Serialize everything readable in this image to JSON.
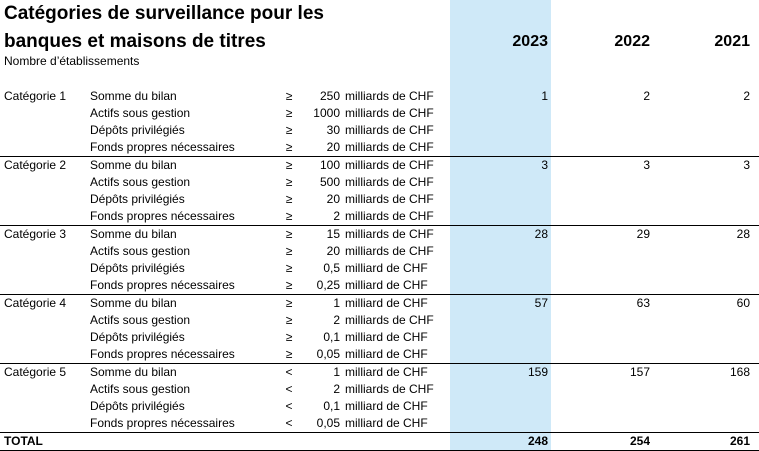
{
  "title_line1": "Catégories de surveillance pour les",
  "title_line2": "banques et maisons de titres",
  "subtitle": "Nombre d’établissements",
  "years": [
    "2023",
    "2022",
    "2021"
  ],
  "rows": [
    {
      "category": "Catégorie 1",
      "criterion": "Somme du bilan",
      "op": "≥",
      "amount": "250",
      "unit": "milliards de CHF",
      "v2023": "1",
      "v2022": "2",
      "v2021": "2"
    },
    {
      "category": "",
      "criterion": "Actifs sous gestion",
      "op": "≥",
      "amount": "1000",
      "unit": "milliards de CHF",
      "v2023": "",
      "v2022": "",
      "v2021": ""
    },
    {
      "category": "",
      "criterion": "Dépôts privilégiés",
      "op": "≥",
      "amount": "30",
      "unit": "milliards de CHF",
      "v2023": "",
      "v2022": "",
      "v2021": ""
    },
    {
      "category": "",
      "criterion": "Fonds propres nécessaires",
      "op": "≥",
      "amount": "20",
      "unit": "milliards de CHF",
      "v2023": "",
      "v2022": "",
      "v2021": ""
    },
    {
      "category": "Catégorie 2",
      "criterion": "Somme du bilan",
      "op": "≥",
      "amount": "100",
      "unit": "milliards de CHF",
      "v2023": "3",
      "v2022": "3",
      "v2021": "3"
    },
    {
      "category": "",
      "criterion": "Actifs sous gestion",
      "op": "≥",
      "amount": "500",
      "unit": "milliards de CHF",
      "v2023": "",
      "v2022": "",
      "v2021": ""
    },
    {
      "category": "",
      "criterion": "Dépôts privilégiés",
      "op": "≥",
      "amount": "20",
      "unit": "milliards de CHF",
      "v2023": "",
      "v2022": "",
      "v2021": ""
    },
    {
      "category": "",
      "criterion": "Fonds propres nécessaires",
      "op": "≥",
      "amount": "2",
      "unit": "milliards de CHF",
      "v2023": "",
      "v2022": "",
      "v2021": ""
    },
    {
      "category": "Catégorie 3",
      "criterion": "Somme du bilan",
      "op": "≥",
      "amount": "15",
      "unit": "milliards de CHF",
      "v2023": "28",
      "v2022": "29",
      "v2021": "28"
    },
    {
      "category": "",
      "criterion": "Actifs sous gestion",
      "op": "≥",
      "amount": "20",
      "unit": "milliards de CHF",
      "v2023": "",
      "v2022": "",
      "v2021": ""
    },
    {
      "category": "",
      "criterion": "Dépôts privilégiés",
      "op": "≥",
      "amount": "0,5",
      "unit": "milliard de CHF",
      "v2023": "",
      "v2022": "",
      "v2021": ""
    },
    {
      "category": "",
      "criterion": "Fonds propres nécessaires",
      "op": "≥",
      "amount": "0,25",
      "unit": "milliard de CHF",
      "v2023": "",
      "v2022": "",
      "v2021": ""
    },
    {
      "category": "Catégorie 4",
      "criterion": "Somme du bilan",
      "op": "≥",
      "amount": "1",
      "unit": "milliard de CHF",
      "v2023": "57",
      "v2022": "63",
      "v2021": "60"
    },
    {
      "category": "",
      "criterion": "Actifs sous gestion",
      "op": "≥",
      "amount": "2",
      "unit": "milliards de CHF",
      "v2023": "",
      "v2022": "",
      "v2021": ""
    },
    {
      "category": "",
      "criterion": "Dépôts privilégiés",
      "op": "≥",
      "amount": "0,1",
      "unit": "milliard de CHF",
      "v2023": "",
      "v2022": "",
      "v2021": ""
    },
    {
      "category": "",
      "criterion": "Fonds propres nécessaires",
      "op": "≥",
      "amount": "0,05",
      "unit": "milliard de CHF",
      "v2023": "",
      "v2022": "",
      "v2021": ""
    },
    {
      "category": "Catégorie 5",
      "criterion": "Somme du bilan",
      "op": "<",
      "amount": "1",
      "unit": "milliard de CHF",
      "v2023": "159",
      "v2022": "157",
      "v2021": "168"
    },
    {
      "category": "",
      "criterion": "Actifs sous gestion",
      "op": "<",
      "amount": "2",
      "unit": "milliards de CHF",
      "v2023": "",
      "v2022": "",
      "v2021": ""
    },
    {
      "category": "",
      "criterion": "Dépôts privilégiés",
      "op": "<",
      "amount": "0,1",
      "unit": "milliard de CHF",
      "v2023": "",
      "v2022": "",
      "v2021": ""
    },
    {
      "category": "",
      "criterion": "Fonds propres nécessaires",
      "op": "<",
      "amount": "0,05",
      "unit": "milliard de CHF",
      "v2023": "",
      "v2022": "",
      "v2021": ""
    }
  ],
  "total": {
    "label": "TOTAL",
    "v2023": "248",
    "v2022": "254",
    "v2021": "261"
  }
}
